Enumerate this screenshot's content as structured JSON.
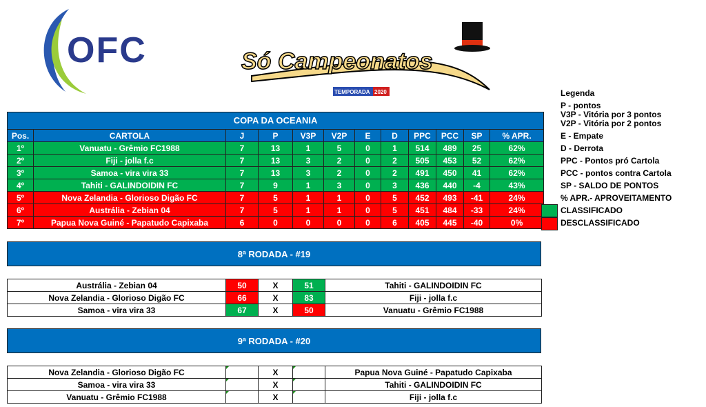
{
  "logos": {
    "ofc": "OFC",
    "brand_main": "Só Campeonatos",
    "brand_sub": "TEMPORADA",
    "brand_year": "2020"
  },
  "standings": {
    "title": "COPA DA OCEANIA",
    "headers": [
      "Pos.",
      "CARTOLA",
      "J",
      "P",
      "V3P",
      "V2P",
      "E",
      "D",
      "PPC",
      "PCC",
      "SP",
      "% APR."
    ],
    "rows": [
      {
        "status": "classificado",
        "cells": [
          "1º",
          "Vanuatu - Grêmio FC1988",
          "7",
          "13",
          "1",
          "5",
          "0",
          "1",
          "514",
          "489",
          "25",
          "62%"
        ]
      },
      {
        "status": "classificado",
        "cells": [
          "2º",
          "Fiji - jolla f.c",
          "7",
          "13",
          "3",
          "2",
          "0",
          "2",
          "505",
          "453",
          "52",
          "62%"
        ]
      },
      {
        "status": "classificado",
        "cells": [
          "3º",
          "Samoa - vira vira 33",
          "7",
          "13",
          "3",
          "2",
          "0",
          "2",
          "491",
          "450",
          "41",
          "62%"
        ]
      },
      {
        "status": "classificado",
        "cells": [
          "4º",
          "Tahiti - GALINDOIDIN FC",
          "7",
          "9",
          "1",
          "3",
          "0",
          "3",
          "436",
          "440",
          "-4",
          "43%"
        ]
      },
      {
        "status": "desclassificado",
        "cells": [
          "5º",
          "Nova Zelandia - Glorioso Digão FC",
          "7",
          "5",
          "1",
          "1",
          "0",
          "5",
          "452",
          "493",
          "-41",
          "24%"
        ]
      },
      {
        "status": "desclassificado",
        "cells": [
          "6º",
          "Austrália - Zebian 04",
          "7",
          "5",
          "1",
          "1",
          "0",
          "5",
          "451",
          "484",
          "-33",
          "24%"
        ]
      },
      {
        "status": "desclassificado",
        "cells": [
          "7º",
          "Papua Nova Guiné - Papatudo Capixaba",
          "6",
          "0",
          "0",
          "0",
          "0",
          "6",
          "405",
          "445",
          "-40",
          "0%"
        ]
      }
    ]
  },
  "legend": {
    "title": "Legenda",
    "items": [
      "P - pontos",
      "V3P - Vitória por 3 pontos",
      "V2P - Vitória por 2 pontos",
      "E - Empate",
      "D - Derrota",
      "PPC - Pontos pró Cartola",
      "PCC - pontos contra Cartola",
      "SP  - SALDO DE PONTOS",
      "% APR.- APROVEITAMENTO"
    ],
    "classified": "CLASSIFICADO",
    "disqualified": "DESCLASSIFICADO",
    "colors": {
      "classified": "#00b050",
      "disqualified": "#ff0000",
      "header": "#0070c0"
    }
  },
  "rounds": [
    {
      "title": "8ª RODADA - #19",
      "matches": [
        {
          "home": "Austrália - Zebian 04",
          "home_score": "50",
          "sep": "X",
          "away_score": "51",
          "away": "Tahiti - GALINDOIDIN FC"
        },
        {
          "home": "Nova Zelandia - Glorioso Digão FC",
          "home_score": "66",
          "sep": "X",
          "away_score": "83",
          "away": "Fiji - jolla f.c"
        },
        {
          "home": "Samoa - vira vira 33",
          "home_score": "67",
          "sep": "X",
          "away_score": "50",
          "away": "Vanuatu - Grêmio FC1988"
        }
      ]
    },
    {
      "title": "9ª RODADA - #20",
      "matches": [
        {
          "home": "Nova Zelandia - Glorioso Digão FC",
          "home_score": "",
          "sep": "X",
          "away_score": "",
          "away": "Papua Nova Guiné - Papatudo Capixaba"
        },
        {
          "home": "Samoa - vira vira 33",
          "home_score": "",
          "sep": "X",
          "away_score": "",
          "away": "Tahiti - GALINDOIDIN FC"
        },
        {
          "home": "Vanuatu - Grêmio FC1988",
          "home_score": "",
          "sep": "X",
          "away_score": "",
          "away": "Fiji - jolla f.c"
        }
      ]
    }
  ]
}
